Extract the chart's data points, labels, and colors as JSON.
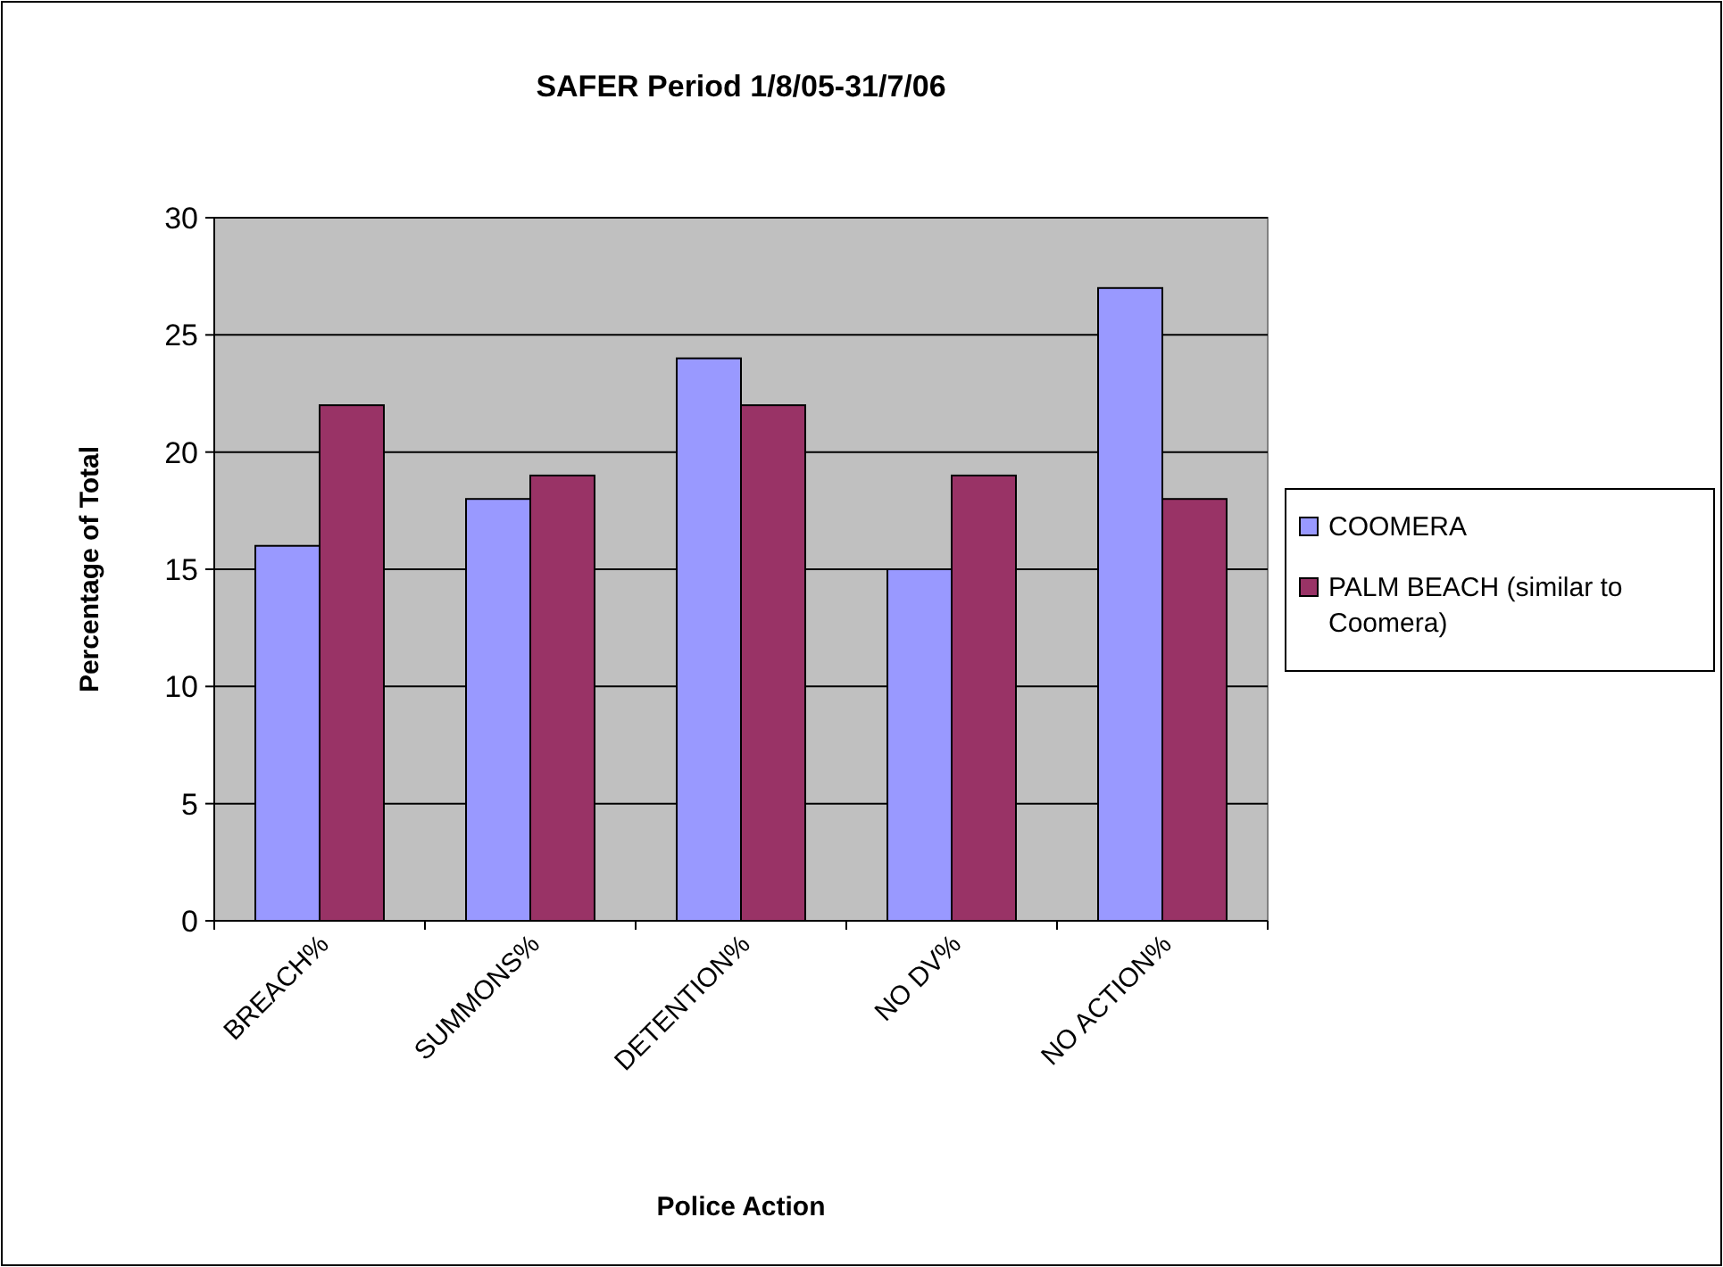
{
  "chart_data": {
    "type": "bar",
    "title": "SAFER Period 1/8/05-31/7/06",
    "xlabel": "Police Action",
    "ylabel": "Percentage of Total",
    "categories": [
      "BREACH%",
      "SUMMONS%",
      "DETENTION%",
      "NO DV%",
      "NO ACTION%"
    ],
    "series": [
      {
        "name": "COOMERA",
        "color": "#9999ff",
        "values": [
          16,
          18,
          24,
          15,
          27
        ]
      },
      {
        "name": "PALM BEACH (similar to Coomera)",
        "color": "#993366",
        "values": [
          22,
          19,
          22,
          19,
          18
        ]
      }
    ],
    "ylim": [
      0,
      30
    ],
    "yticks": [
      0,
      5,
      10,
      15,
      20,
      25,
      30
    ],
    "grid": "y",
    "legend": "right"
  }
}
